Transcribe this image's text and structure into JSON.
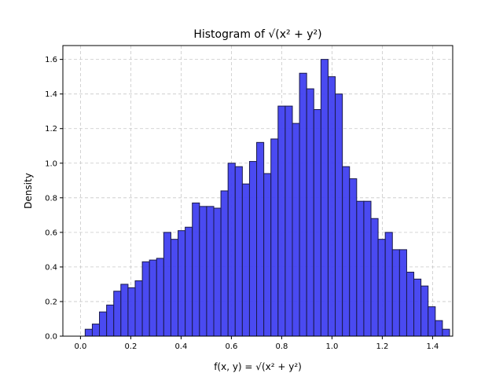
{
  "chart_data": {
    "type": "bar",
    "title": "Histogram of √(x² + y²)",
    "xlabel": "f(x, y) = √(x² + y²)",
    "ylabel": "Density",
    "xlim": [
      -0.07,
      1.48
    ],
    "ylim": [
      0,
      1.68
    ],
    "xticks": [
      0.0,
      0.2,
      0.4,
      0.6,
      0.8,
      1.0,
      1.2,
      1.4
    ],
    "yticks": [
      0.0,
      0.2,
      0.4,
      0.6,
      0.8,
      1.0,
      1.2,
      1.4,
      1.6
    ],
    "xtick_labels": [
      "0.0",
      "0.2",
      "0.4",
      "0.6",
      "0.8",
      "1.0",
      "1.2",
      "1.4"
    ],
    "ytick_labels": [
      "0.0",
      "0.2",
      "0.4",
      "0.6",
      "0.8",
      "1.0",
      "1.2",
      "1.4",
      "1.6"
    ],
    "grid": true,
    "grid_style": "dashed",
    "bar_color": "#4040f0",
    "edge_color": "#1a1a4a",
    "bins": {
      "start": 0.0186,
      "width": 0.02841,
      "values": [
        0.04,
        0.07,
        0.14,
        0.18,
        0.26,
        0.3,
        0.28,
        0.32,
        0.43,
        0.44,
        0.45,
        0.6,
        0.56,
        0.61,
        0.63,
        0.77,
        0.75,
        0.75,
        0.74,
        0.84,
        1.0,
        0.98,
        0.88,
        1.01,
        1.12,
        0.94,
        1.14,
        1.33,
        1.33,
        1.23,
        1.52,
        1.43,
        1.31,
        1.6,
        1.5,
        1.4,
        0.98,
        0.91,
        0.78,
        0.78,
        0.68,
        0.56,
        0.6,
        0.5,
        0.5,
        0.37,
        0.33,
        0.29,
        0.17,
        0.09,
        0.04
      ]
    }
  }
}
